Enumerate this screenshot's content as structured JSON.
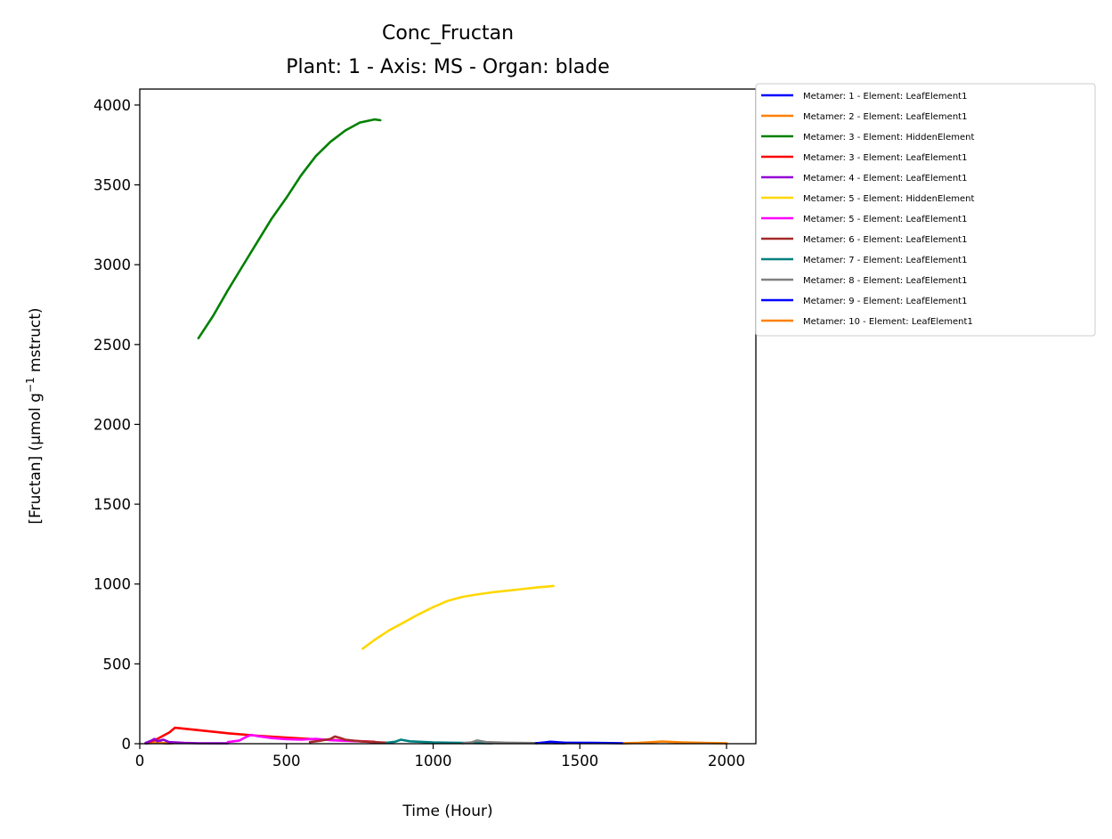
{
  "chart_data": {
    "type": "line",
    "title": "Conc_Fructan",
    "subtitle": "Plant: 1 - Axis: MS - Organ: blade",
    "xlabel": "Time (Hour)",
    "ylabel_main": "[Fructan] (µmol g",
    "ylabel_sup": "−1",
    "ylabel_tail": " mstruct)",
    "xlim": [
      0,
      2100
    ],
    "ylim": [
      0,
      4100
    ],
    "xticks": [
      0,
      500,
      1000,
      1500,
      2000
    ],
    "yticks": [
      0,
      500,
      1000,
      1500,
      2000,
      2500,
      3000,
      3500,
      4000
    ],
    "legend_position": "outside upper right",
    "series": [
      {
        "name": "Metamer: 1 - Element: LeafElement1",
        "color": "#0000ff",
        "x": [
          20,
          40,
          60,
          80,
          100
        ],
        "y": [
          2,
          5,
          8,
          4,
          2
        ]
      },
      {
        "name": "Metamer: 2 - Element: LeafElement1",
        "color": "#ff8000",
        "x": [
          30,
          50,
          70,
          90,
          110
        ],
        "y": [
          3,
          6,
          5,
          3,
          2
        ]
      },
      {
        "name": "Metamer: 3 - Element: HiddenElement",
        "color": "#008000",
        "x": [
          200,
          250,
          300,
          350,
          400,
          450,
          500,
          550,
          600,
          650,
          700,
          750,
          800,
          820
        ],
        "y": [
          2540,
          2680,
          2840,
          2990,
          3140,
          3290,
          3420,
          3560,
          3680,
          3770,
          3840,
          3890,
          3910,
          3905
        ]
      },
      {
        "name": "Metamer: 3 - Element: LeafElement1",
        "color": "#ff0000",
        "x": [
          20,
          40,
          60,
          80,
          100,
          120,
          200,
          300,
          400,
          500,
          600,
          700,
          800
        ],
        "y": [
          5,
          15,
          30,
          50,
          70,
          100,
          85,
          65,
          50,
          38,
          28,
          20,
          12
        ]
      },
      {
        "name": "Metamer: 4 - Element: LeafElement1",
        "color": "#9400d3",
        "x": [
          20,
          40,
          50,
          60,
          80,
          100,
          150,
          200,
          300
        ],
        "y": [
          5,
          20,
          30,
          15,
          25,
          10,
          5,
          3,
          2
        ]
      },
      {
        "name": "Metamer: 5 - Element: HiddenElement",
        "color": "#ffd700",
        "x": [
          760,
          800,
          850,
          900,
          950,
          1000,
          1050,
          1100,
          1150,
          1200,
          1250,
          1300,
          1350,
          1410
        ],
        "y": [
          595,
          650,
          710,
          760,
          810,
          855,
          895,
          920,
          935,
          948,
          958,
          968,
          978,
          988
        ]
      },
      {
        "name": "Metamer: 5 - Element: LeafElement1",
        "color": "#ff00ff",
        "x": [
          300,
          340,
          360,
          380,
          400,
          450,
          500,
          550,
          600,
          650,
          700,
          750,
          800
        ],
        "y": [
          10,
          20,
          40,
          55,
          48,
          35,
          28,
          25,
          30,
          22,
          18,
          15,
          10
        ]
      },
      {
        "name": "Metamer: 6 - Element: LeafElement1",
        "color": "#a52a2a",
        "x": [
          580,
          620,
          650,
          665,
          680,
          700,
          750,
          800,
          850
        ],
        "y": [
          10,
          20,
          30,
          45,
          38,
          25,
          15,
          10,
          5
        ]
      },
      {
        "name": "Metamer: 7 - Element: LeafElement1",
        "color": "#008080",
        "x": [
          840,
          870,
          890,
          920,
          1000,
          1100,
          1200
        ],
        "y": [
          5,
          12,
          25,
          15,
          8,
          5,
          3
        ]
      },
      {
        "name": "Metamer: 8 - Element: LeafElement1",
        "color": "#808080",
        "x": [
          1100,
          1130,
          1150,
          1180,
          1250,
          1350,
          1450
        ],
        "y": [
          3,
          8,
          20,
          10,
          6,
          4,
          2
        ]
      },
      {
        "name": "Metamer: 9 - Element: LeafElement1",
        "color": "#0000ff",
        "x": [
          1350,
          1380,
          1400,
          1450,
          1550,
          1650
        ],
        "y": [
          3,
          8,
          12,
          6,
          5,
          3
        ]
      },
      {
        "name": "Metamer: 10 - Element: LeafElement1",
        "color": "#ff8000",
        "x": [
          1650,
          1700,
          1750,
          1780,
          1850,
          1950,
          2000
        ],
        "y": [
          2,
          5,
          10,
          14,
          8,
          4,
          2
        ]
      }
    ]
  }
}
